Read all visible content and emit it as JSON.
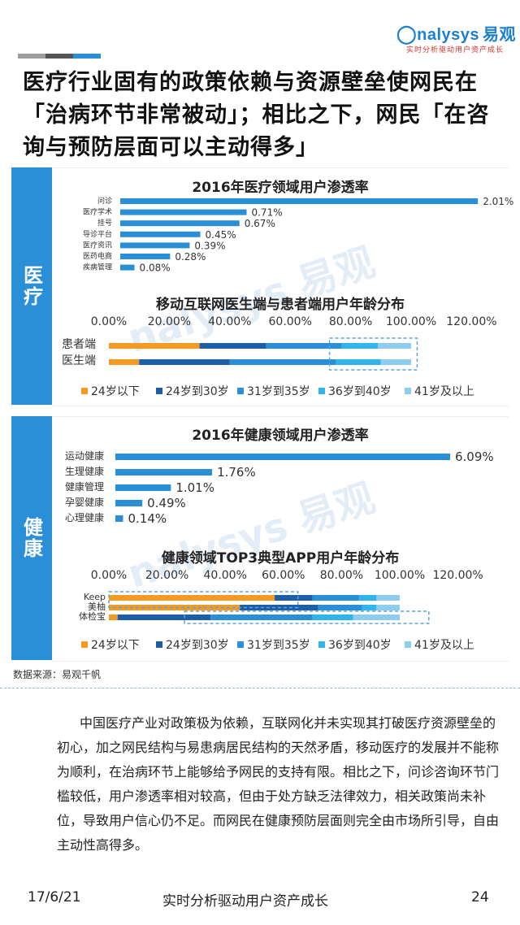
{
  "header": {
    "logo_text": "nalysys",
    "logo_cn": "易观",
    "slogan": "实时分析驱动用户资产成长",
    "accent_colors": [
      "#9e9e9e",
      "#555555",
      "#2a8fd6"
    ]
  },
  "title": "医疗行业固有的政策依赖与资源壁垒使网民在「治病环节非常被动」；相比之下，网民「在咨询与预防层面可以主动得多」",
  "sections": [
    {
      "label": "医疗"
    },
    {
      "label": "健康"
    }
  ],
  "watermark": {
    "text": "nalysys 易观",
    "sub": "实时分析驱动用户资产成长"
  },
  "chart_data": [
    {
      "type": "bar",
      "orientation": "horizontal",
      "title": "2016年医疗领域用户渗透率",
      "categories": [
        "问诊",
        "医疗学术",
        "挂号",
        "导诊平台",
        "医疗资讯",
        "医药电商",
        "疾病管理"
      ],
      "values": [
        2.01,
        0.71,
        0.67,
        0.45,
        0.39,
        0.28,
        0.08
      ],
      "value_labels": [
        "2.01%",
        "0.71%",
        "0.67%",
        "0.45%",
        "0.39%",
        "0.28%",
        "0.08%"
      ],
      "xlim": [
        0,
        2.0
      ],
      "color": "#2a8fd6"
    },
    {
      "type": "bar",
      "orientation": "horizontal",
      "stacked": true,
      "title": "移动互联网医生端与患者端用户年龄分布",
      "categories": [
        "患者端",
        "医生端"
      ],
      "ticks": [
        "0.00%",
        "20.00%",
        "40.00%",
        "60.00%",
        "80.00%",
        "100.00%",
        "120.00%"
      ],
      "xlim": [
        0,
        120
      ],
      "series": [
        {
          "name": "24岁以下",
          "color": "#f59a23",
          "values": [
            30,
            10
          ]
        },
        {
          "name": "24岁到30岁",
          "color": "#1d5ea8",
          "values": [
            22,
            30
          ]
        },
        {
          "name": "31岁到35岁",
          "color": "#2a8fd6",
          "values": [
            25,
            35
          ]
        },
        {
          "name": "36岁到40岁",
          "color": "#30b4ec",
          "values": [
            12,
            15
          ]
        },
        {
          "name": "41岁及以上",
          "color": "#8fcdf0",
          "values": [
            11,
            10
          ]
        }
      ],
      "highlight": {
        "x_from": 73,
        "x_to": 102,
        "rows": "both"
      }
    },
    {
      "type": "bar",
      "orientation": "horizontal",
      "title": "2016年健康领域用户渗透率",
      "categories": [
        "运动健康",
        "生理健康",
        "健康管理",
        "孕婴健康",
        "心理健康"
      ],
      "values": [
        6.09,
        1.76,
        1.01,
        0.49,
        0.14
      ],
      "value_labels": [
        "6.09%",
        "1.76%",
        "1.01%",
        "0.49%",
        "0.14%"
      ],
      "xlim": [
        0,
        6.09
      ],
      "color": "#2a8fd6"
    },
    {
      "type": "bar",
      "orientation": "horizontal",
      "stacked": true,
      "title": "健康领域TOP3典型APP用户年龄分布",
      "categories": [
        "Keep",
        "美柚",
        "体检宝"
      ],
      "ticks": [
        "0.00%",
        "20.00%",
        "40.00%",
        "60.00%",
        "80.00%",
        "100.00%",
        "120.00%"
      ],
      "xlim": [
        0,
        120
      ],
      "series": [
        {
          "name": "24岁以下",
          "color": "#f59a23",
          "values": [
            57,
            45,
            3
          ]
        },
        {
          "name": "24岁到30岁",
          "color": "#1d5ea8",
          "values": [
            13,
            27,
            32
          ]
        },
        {
          "name": "31岁到35岁",
          "color": "#2a8fd6",
          "values": [
            16,
            15,
            35
          ]
        },
        {
          "name": "36岁到40岁",
          "color": "#30b4ec",
          "values": [
            6,
            5,
            14
          ]
        },
        {
          "name": "41岁及以上",
          "color": "#8fcdf0",
          "values": [
            8,
            8,
            16
          ]
        }
      ],
      "highlights": [
        {
          "x_from": 0,
          "x_to": 65,
          "rows": "top"
        },
        {
          "x_from": 26,
          "x_to": 110,
          "rows": "bottom"
        }
      ]
    }
  ],
  "source": "数据来源：易观千帆",
  "body_text": "中国医疗产业对政策极为依赖，互联网化并未实现其打破医疗资源壁垒的初心，加之网民结构与易患病居民结构的天然矛盾，移动医疗的发展并不能称为顺利，在治病环节上能够给予网民的支持有限。相比之下，问诊咨询环节门槛较低，用户渗透率相对较高，但由于处方缺乏法律效力，相关政策尚未补位，导致用户信心仍不足。而网民在健康预防层面则完全由市场所引导，自由主动性高得多。",
  "footer": {
    "date": "17/6/21",
    "slogan": "实时分析驱动用户资产成长",
    "page": "24"
  }
}
